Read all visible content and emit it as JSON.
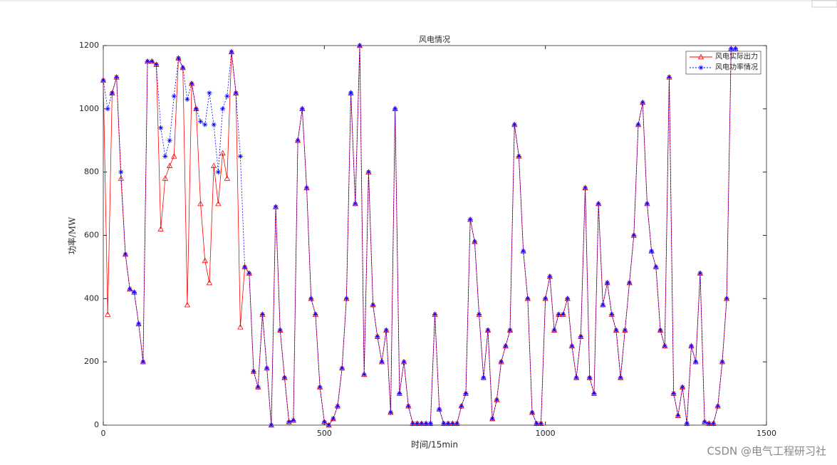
{
  "chart_data": {
    "type": "line",
    "title": "风电情况",
    "x_label": "时间/15min",
    "y_label": "功率/MW",
    "xlim": [
      0,
      1500
    ],
    "xticks": [
      0,
      500,
      1000,
      1500
    ],
    "ylim": [
      0,
      1200
    ],
    "yticks": [
      0,
      200,
      400,
      600,
      800,
      1000,
      1200
    ],
    "grid": false,
    "legend": "northeast",
    "x": [
      0,
      10,
      20,
      30,
      40,
      50,
      60,
      70,
      80,
      90,
      100,
      110,
      120,
      130,
      140,
      150,
      160,
      170,
      180,
      190,
      200,
      210,
      220,
      230,
      240,
      250,
      260,
      270,
      280,
      290,
      300,
      310,
      320,
      330,
      340,
      350,
      360,
      370,
      380,
      390,
      400,
      410,
      420,
      430,
      440,
      450,
      460,
      470,
      480,
      490,
      500,
      510,
      520,
      530,
      540,
      550,
      560,
      570,
      580,
      590,
      600,
      610,
      620,
      630,
      640,
      650,
      660,
      670,
      680,
      690,
      700,
      710,
      720,
      730,
      740,
      750,
      760,
      770,
      780,
      790,
      800,
      810,
      820,
      830,
      840,
      850,
      860,
      870,
      880,
      890,
      900,
      910,
      920,
      930,
      940,
      950,
      960,
      970,
      980,
      990,
      1000,
      1010,
      1020,
      1030,
      1040,
      1050,
      1060,
      1070,
      1080,
      1090,
      1100,
      1110,
      1120,
      1130,
      1140,
      1150,
      1160,
      1170,
      1180,
      1190,
      1200,
      1210,
      1220,
      1230,
      1240,
      1250,
      1260,
      1270,
      1280,
      1290,
      1300,
      1310,
      1320,
      1330,
      1340,
      1350,
      1360,
      1370,
      1380,
      1390,
      1400,
      1410,
      1420,
      1430
    ],
    "series": [
      {
        "name": "风电实际出力",
        "color": "#ff0000",
        "marker": "triangle",
        "values": [
          1090,
          350,
          1050,
          1100,
          780,
          540,
          430,
          420,
          320,
          200,
          1150,
          1150,
          1140,
          620,
          780,
          820,
          850,
          1160,
          1130,
          380,
          1080,
          1000,
          700,
          520,
          450,
          820,
          700,
          860,
          780,
          1180,
          1050,
          310,
          500,
          480,
          170,
          120,
          350,
          180,
          0,
          690,
          300,
          150,
          10,
          15,
          900,
          1000,
          750,
          400,
          350,
          120,
          10,
          0,
          20,
          60,
          180,
          400,
          1050,
          700,
          1200,
          160,
          800,
          380,
          280,
          200,
          300,
          40,
          1000,
          100,
          200,
          60,
          5,
          5,
          5,
          5,
          5,
          350,
          50,
          5,
          5,
          5,
          5,
          60,
          100,
          650,
          580,
          350,
          150,
          300,
          20,
          80,
          200,
          250,
          300,
          950,
          850,
          550,
          400,
          40,
          5,
          5,
          400,
          470,
          300,
          350,
          350,
          400,
          250,
          150,
          280,
          750,
          150,
          100,
          700,
          380,
          450,
          350,
          300,
          150,
          300,
          450,
          600,
          950,
          1020,
          700,
          550,
          500,
          300,
          250,
          1100,
          100,
          30,
          120,
          5,
          250,
          200,
          480,
          10,
          5,
          5,
          60,
          200,
          400,
          1190,
          1190
        ]
      },
      {
        "name": "风电功率情况",
        "color": "#0000ff",
        "marker": "star",
        "values": [
          1090,
          1000,
          1050,
          1100,
          800,
          540,
          430,
          420,
          320,
          200,
          1150,
          1150,
          1140,
          940,
          850,
          900,
          1040,
          1160,
          1130,
          1030,
          1080,
          1000,
          960,
          950,
          1050,
          950,
          800,
          1000,
          1040,
          1180,
          1050,
          850,
          500,
          480,
          170,
          120,
          350,
          180,
          0,
          690,
          300,
          150,
          10,
          15,
          900,
          1000,
          750,
          400,
          350,
          120,
          10,
          0,
          20,
          60,
          180,
          400,
          1050,
          700,
          1200,
          160,
          800,
          380,
          280,
          200,
          300,
          40,
          1000,
          100,
          200,
          60,
          5,
          5,
          5,
          5,
          5,
          350,
          50,
          5,
          5,
          5,
          5,
          60,
          100,
          650,
          580,
          350,
          150,
          300,
          20,
          80,
          200,
          250,
          300,
          950,
          850,
          550,
          400,
          40,
          5,
          5,
          400,
          470,
          300,
          350,
          350,
          400,
          250,
          150,
          280,
          750,
          150,
          100,
          700,
          380,
          450,
          350,
          300,
          150,
          300,
          450,
          600,
          950,
          1020,
          700,
          550,
          500,
          300,
          250,
          1100,
          100,
          30,
          120,
          5,
          250,
          200,
          480,
          10,
          5,
          5,
          60,
          200,
          400,
          1190,
          1190
        ]
      }
    ]
  },
  "watermark": "CSDN @电气工程研习社"
}
